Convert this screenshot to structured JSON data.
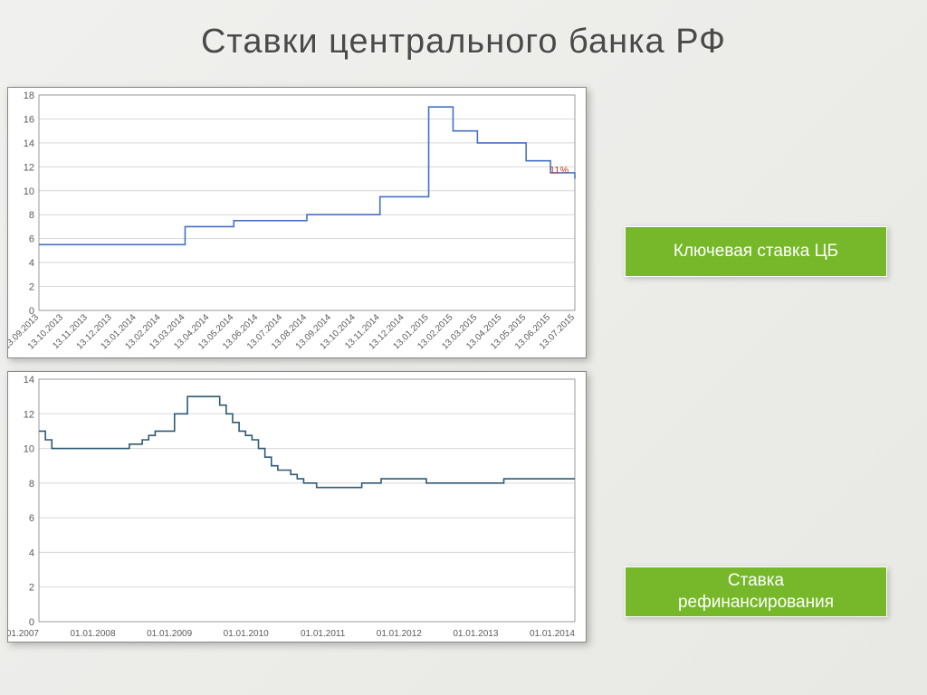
{
  "title": "Ставки центрального банка РФ",
  "badge1": "Ключевая ставка ЦБ",
  "badge2": "Ставка\nрефинансирования",
  "chart1": {
    "type": "step-line",
    "background_color": "#ffffff",
    "grid_color": "#d8d8d8",
    "axis_color": "#9a9a9a",
    "line_color": "#4472c4",
    "line_width": 1.6,
    "ylim": [
      0,
      18
    ],
    "ytick_step": 2,
    "tick_fontsize": 11,
    "x_labels": [
      "13.09.2013",
      "13.10.2013",
      "13.11.2013",
      "13.12.2013",
      "13.01.2014",
      "13.02.2014",
      "13.03.2014",
      "13.04.2014",
      "13.05.2014",
      "13.06.2014",
      "13.07.2014",
      "13.08.2014",
      "13.09.2014",
      "13.10.2014",
      "13.11.2014",
      "13.12.2014",
      "13.01.2015",
      "13.02.2015",
      "13.03.2015",
      "13.04.2015",
      "13.05.2015",
      "13.06.2015",
      "13.07.2015"
    ],
    "values": [
      5.5,
      5.5,
      5.5,
      5.5,
      5.5,
      5.5,
      7.0,
      7.0,
      7.5,
      7.5,
      7.5,
      8.0,
      8.0,
      8.0,
      9.5,
      9.5,
      17.0,
      15.0,
      14.0,
      14.0,
      12.5,
      11.5,
      11.0
    ],
    "annotation": {
      "label": "11%",
      "color": "#c0392b",
      "fontsize": 11,
      "at_index": 22
    }
  },
  "chart2": {
    "type": "step-line",
    "background_color": "#ffffff",
    "grid_color": "#d8d8d8",
    "axis_color": "#9a9a9a",
    "line_color": "#2f5a74",
    "line_width": 1.6,
    "ylim": [
      0,
      14
    ],
    "ytick_step": 2,
    "tick_fontsize": 11,
    "x_labels": [
      "01.01.2007",
      "01.01.2008",
      "01.01.2009",
      "01.01.2010",
      "01.01.2011",
      "01.01.2012",
      "01.01.2013",
      "01.01.2014"
    ],
    "x_span": 84,
    "values": [
      11.0,
      10.5,
      10.0,
      10.0,
      10.0,
      10.0,
      10.0,
      10.0,
      10.0,
      10.0,
      10.0,
      10.0,
      10.0,
      10.0,
      10.25,
      10.25,
      10.5,
      10.75,
      11.0,
      11.0,
      11.0,
      12.0,
      12.0,
      13.0,
      13.0,
      13.0,
      13.0,
      13.0,
      12.5,
      12.0,
      11.5,
      11.0,
      10.75,
      10.5,
      10.0,
      9.5,
      9.0,
      8.75,
      8.75,
      8.5,
      8.25,
      8.0,
      8.0,
      7.75,
      7.75,
      7.75,
      7.75,
      7.75,
      7.75,
      7.75,
      8.0,
      8.0,
      8.0,
      8.25,
      8.25,
      8.25,
      8.25,
      8.25,
      8.25,
      8.25,
      8.0,
      8.0,
      8.0,
      8.0,
      8.0,
      8.0,
      8.0,
      8.0,
      8.0,
      8.0,
      8.0,
      8.0,
      8.25,
      8.25,
      8.25,
      8.25,
      8.25,
      8.25,
      8.25,
      8.25,
      8.25,
      8.25,
      8.25,
      8.25
    ]
  }
}
